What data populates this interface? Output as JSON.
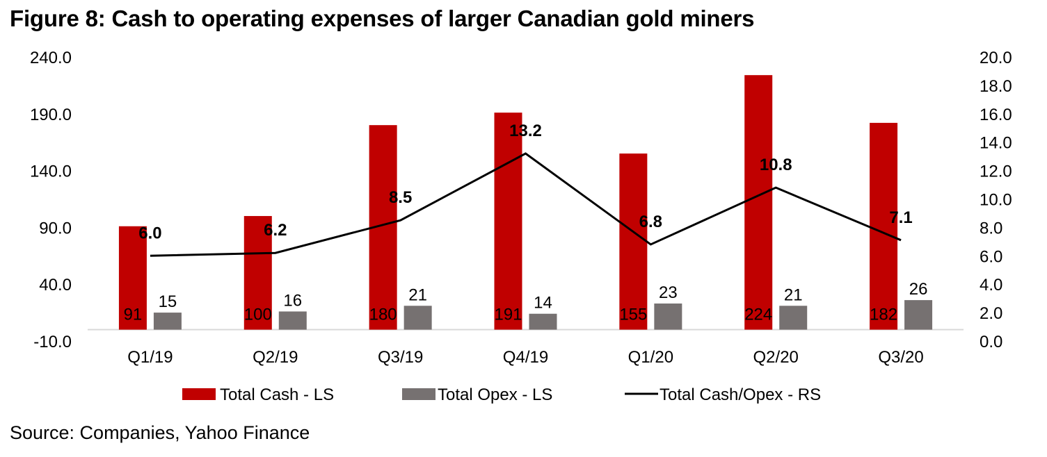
{
  "figure": {
    "title": "Figure 8: Cash to operating expenses of larger Canadian gold miners",
    "source": "Source: Companies, Yahoo Finance"
  },
  "colors": {
    "cash": "#c00000",
    "opex": "#767171",
    "line": "#000000",
    "axis": "#d9d9d9"
  },
  "chart_data": {
    "type": "bar",
    "title": "Figure 8: Cash to operating expenses of larger Canadian gold miners",
    "xlabel": "",
    "ylabel": "",
    "categories": [
      "Q1/19",
      "Q2/19",
      "Q3/19",
      "Q4/19",
      "Q1/20",
      "Q2/20",
      "Q3/20"
    ],
    "series": [
      {
        "name": "Total Cash - LS",
        "type": "bar",
        "axis": "left",
        "values": [
          91,
          100,
          180,
          191,
          155,
          224,
          182
        ],
        "labels": [
          "91",
          "100",
          "180",
          "191",
          "155",
          "224",
          "182"
        ]
      },
      {
        "name": "Total Opex - LS",
        "type": "bar",
        "axis": "left",
        "values": [
          15,
          16,
          21,
          14,
          23,
          21,
          26
        ],
        "labels": [
          "15",
          "16",
          "21",
          "14",
          "23",
          "21",
          "26"
        ]
      },
      {
        "name": "Total Cash/Opex - RS",
        "type": "line",
        "axis": "right",
        "values": [
          6.0,
          6.2,
          8.5,
          13.2,
          6.8,
          10.8,
          7.1
        ],
        "labels": [
          "6.0",
          "6.2",
          "8.5",
          "13.2",
          "6.8",
          "10.8",
          "7.1"
        ]
      }
    ],
    "left_axis": {
      "ylim": [
        -10,
        240
      ],
      "ticks": [
        -10,
        40,
        90,
        140,
        190,
        240
      ],
      "tick_labels": [
        "-10.0",
        "40.0",
        "90.0",
        "140.0",
        "190.0",
        "240.0"
      ]
    },
    "right_axis": {
      "ylim": [
        0,
        20
      ],
      "ticks": [
        0,
        2,
        4,
        6,
        8,
        10,
        12,
        14,
        16,
        18,
        20
      ],
      "tick_labels": [
        "0.0",
        "2.0",
        "4.0",
        "6.0",
        "8.0",
        "10.0",
        "12.0",
        "14.0",
        "16.0",
        "18.0",
        "20.0"
      ]
    },
    "grid": false,
    "legend": {
      "placement": "bottom",
      "entries": [
        "Total Cash - LS",
        "Total Opex - LS",
        "Total Cash/Opex - RS"
      ]
    }
  }
}
